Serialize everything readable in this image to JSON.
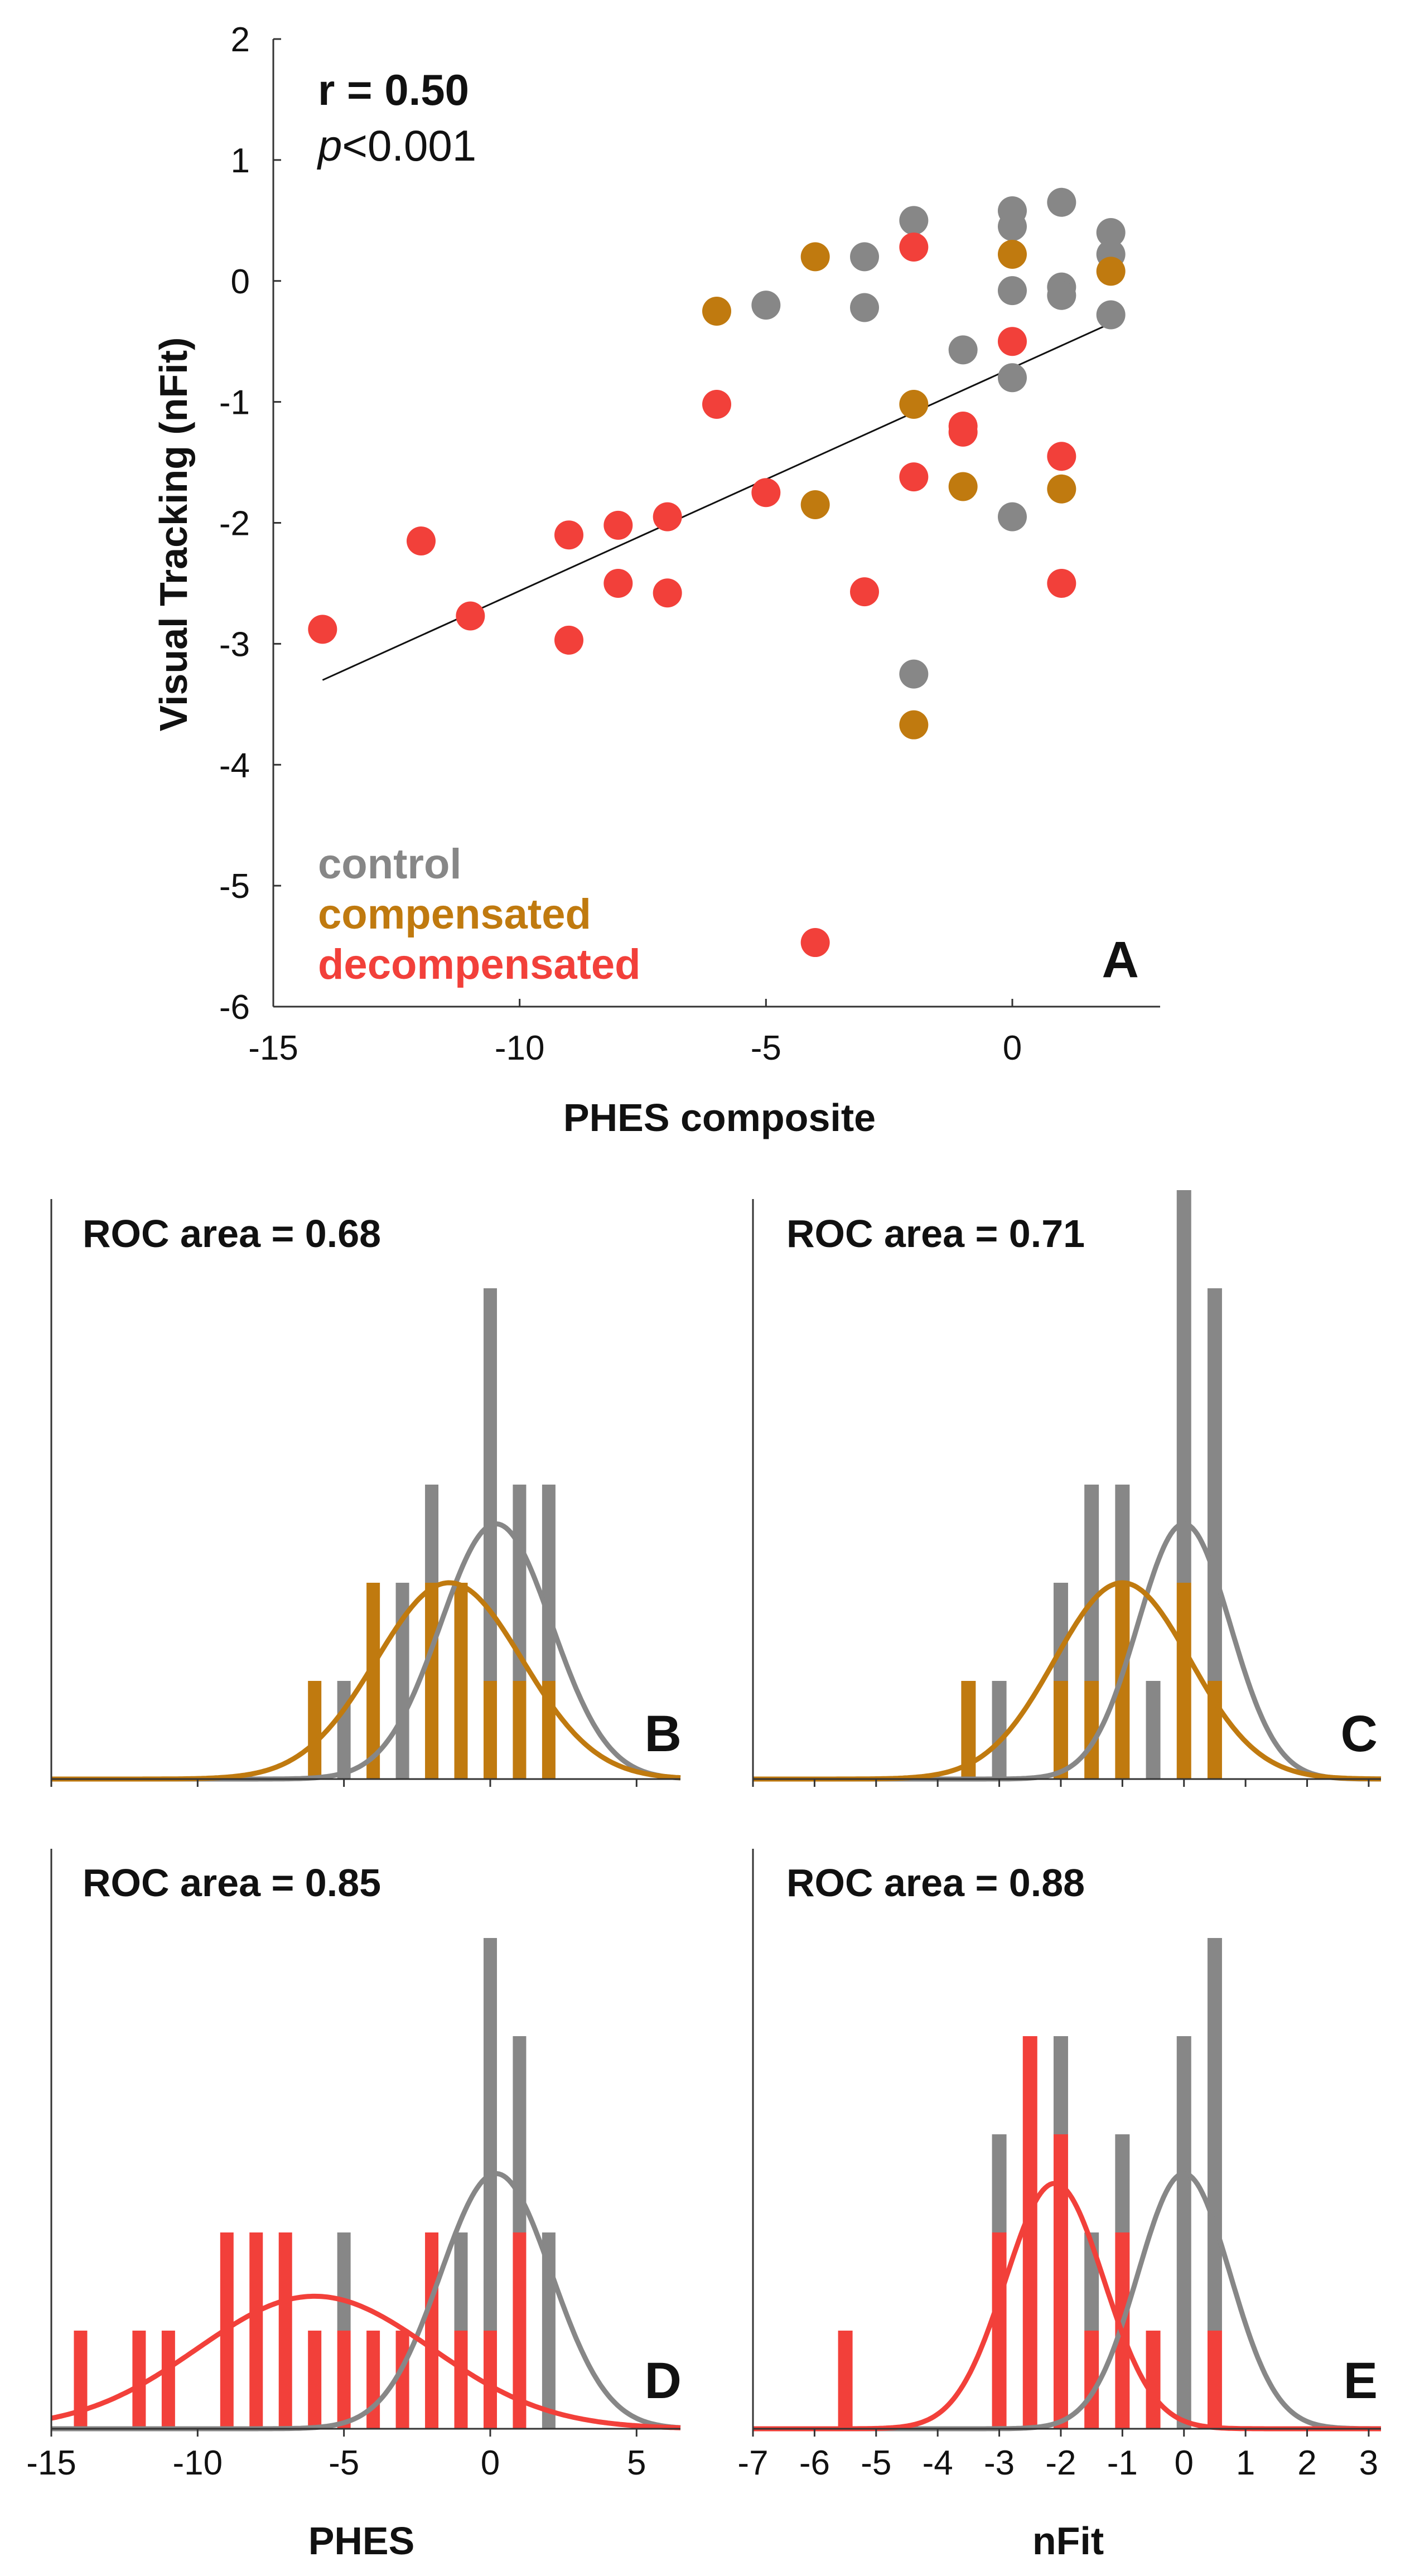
{
  "colors": {
    "control": "#878787",
    "compensated": "#C07A0F",
    "decompensated": "#F2403A",
    "axis": "#333333"
  },
  "chart_data": [
    {
      "panel": "A",
      "type": "scatter",
      "xlabel": "PHES composite",
      "ylabel": "Visual Tracking (nFit)",
      "xlim": [
        -15,
        3
      ],
      "ylim": [
        -6,
        2
      ],
      "xticks": [
        "-15",
        "-10",
        "-5",
        "0"
      ],
      "xtick_values": [
        -15,
        -10,
        -5,
        0
      ],
      "yticks": [
        "2",
        "1",
        "0",
        "-1",
        "-2",
        "-3",
        "-4",
        "-5",
        "-6"
      ],
      "ytick_values": [
        2,
        1,
        0,
        -1,
        -2,
        -3,
        -4,
        -5,
        -6
      ],
      "stats": {
        "r": "r = 0.50",
        "p_italic": "p",
        "p_rest": "<0.001"
      },
      "legend": [
        "control",
        "compensated",
        "decompensated"
      ],
      "fit_line": {
        "x": [
          -14,
          2
        ],
        "y": [
          -3.3,
          -0.35
        ]
      },
      "series": [
        {
          "name": "control",
          "points": [
            [
              -5,
              -0.2
            ],
            [
              -3,
              0.2
            ],
            [
              -3,
              -0.22
            ],
            [
              -2,
              0.5
            ],
            [
              -2,
              -3.25
            ],
            [
              -1,
              -0.57
            ],
            [
              0,
              0.58
            ],
            [
              0,
              0.45
            ],
            [
              0,
              -0.08
            ],
            [
              0,
              -0.8
            ],
            [
              0,
              -1.95
            ],
            [
              1,
              0.65
            ],
            [
              1,
              -0.05
            ],
            [
              1,
              -0.12
            ],
            [
              2,
              0.4
            ],
            [
              2,
              0.22
            ],
            [
              2,
              -0.28
            ]
          ]
        },
        {
          "name": "compensated",
          "points": [
            [
              -6,
              -0.25
            ],
            [
              -4,
              0.2
            ],
            [
              -4,
              -1.85
            ],
            [
              -2,
              -1.02
            ],
            [
              -2,
              -3.67
            ],
            [
              -1,
              -1.7
            ],
            [
              0,
              0.22
            ],
            [
              1,
              -1.72
            ],
            [
              2,
              0.08
            ]
          ]
        },
        {
          "name": "decompensated",
          "points": [
            [
              -14,
              -2.88
            ],
            [
              -12,
              -2.15
            ],
            [
              -11,
              -2.77
            ],
            [
              -9,
              -2.1
            ],
            [
              -9,
              -2.97
            ],
            [
              -8,
              -2.02
            ],
            [
              -8,
              -2.5
            ],
            [
              -7,
              -1.95
            ],
            [
              -7,
              -2.58
            ],
            [
              -6,
              -1.02
            ],
            [
              -5,
              -1.75
            ],
            [
              -4,
              -5.47
            ],
            [
              -3,
              -2.57
            ],
            [
              -2,
              0.28
            ],
            [
              -2,
              -1.62
            ],
            [
              -1,
              -1.2
            ],
            [
              -1,
              -1.25
            ],
            [
              0,
              -0.5
            ],
            [
              1,
              -1.45
            ],
            [
              1,
              -2.5
            ]
          ]
        }
      ]
    },
    {
      "panel": "B",
      "type": "bar",
      "title": "ROC area = 0.68",
      "xlim": [
        -15,
        6.5
      ],
      "compare": "compensated",
      "bins": [
        -6,
        -5,
        -4,
        -3,
        -2,
        -1,
        0,
        1,
        2
      ],
      "control_counts": [
        0,
        1,
        0,
        2,
        1,
        0,
        4,
        2,
        2
      ],
      "patient_counts": [
        1,
        0,
        2,
        0,
        2,
        2,
        1,
        1,
        1
      ],
      "fits": [
        {
          "name": "control",
          "mu": 0.2,
          "sigma": 1.9,
          "peak_counts": 2.6
        },
        {
          "name": "compensated",
          "mu": -1.4,
          "sigma": 2.5,
          "peak_counts": 2.0
        }
      ]
    },
    {
      "panel": "C",
      "type": "bar",
      "title": "ROC area = 0.71",
      "xlim": [
        -7,
        3.2
      ],
      "compare": "compensated",
      "bins": [
        -3.5,
        -3.0,
        -2.0,
        -1.5,
        -1.0,
        -0.5,
        0.0,
        0.5
      ],
      "control_counts": [
        0,
        1,
        1,
        2,
        1,
        1,
        4,
        4
      ],
      "patient_counts": [
        1,
        0,
        1,
        1,
        2,
        0,
        2,
        1
      ],
      "fits": [
        {
          "name": "control",
          "mu": 0.0,
          "sigma": 0.75,
          "peak_counts": 2.6
        },
        {
          "name": "compensated",
          "mu": -1.0,
          "sigma": 1.1,
          "peak_counts": 2.0
        }
      ]
    },
    {
      "panel": "D",
      "type": "bar",
      "title": "ROC area = 0.85",
      "xlabel": "PHES",
      "xlim": [
        -15,
        6.5
      ],
      "xticks": [
        "-15",
        "-10",
        "-5",
        "0",
        "5"
      ],
      "xtick_values": [
        -15,
        -10,
        -5,
        0,
        5
      ],
      "compare": "decompensated",
      "bins": [
        -14,
        -12,
        -11,
        -9,
        -8,
        -7,
        -6,
        -5,
        -4,
        -3,
        -2,
        -1,
        0,
        1,
        2
      ],
      "control_counts": [
        0,
        0,
        0,
        0,
        0,
        0,
        0,
        1,
        0,
        0,
        0,
        1,
        4,
        2,
        2
      ],
      "patient_counts": [
        1,
        1,
        1,
        2,
        2,
        2,
        1,
        1,
        1,
        1,
        2,
        1,
        1,
        2,
        0
      ],
      "fits": [
        {
          "name": "control",
          "mu": 0.2,
          "sigma": 1.9,
          "peak_counts": 2.6
        },
        {
          "name": "decompensated",
          "mu": -6.0,
          "sigma": 4.0,
          "peak_counts": 1.35
        }
      ]
    },
    {
      "panel": "E",
      "type": "bar",
      "title": "ROC area = 0.88",
      "xlabel": "nFit",
      "xlim": [
        -7,
        3.2
      ],
      "xticks": [
        "-7",
        "-6",
        "-5",
        "-4",
        "-3",
        "-2",
        "-1",
        "0",
        "1",
        "2",
        "3"
      ],
      "xtick_values": [
        -7,
        -6,
        -5,
        -4,
        -3,
        -2,
        -1,
        0,
        1,
        2,
        3
      ],
      "compare": "decompensated",
      "bins": [
        -5.5,
        -3.0,
        -2.5,
        -2.0,
        -1.5,
        -1.0,
        -0.5,
        0.0,
        0.5
      ],
      "control_counts": [
        0,
        1,
        0,
        1,
        1,
        1,
        0,
        4,
        4
      ],
      "patient_counts": [
        1,
        2,
        4,
        3,
        1,
        2,
        1,
        0,
        1
      ],
      "fits": [
        {
          "name": "control",
          "mu": 0.0,
          "sigma": 0.75,
          "peak_counts": 2.6
        },
        {
          "name": "decompensated",
          "mu": -2.1,
          "sigma": 0.8,
          "peak_counts": 2.5
        }
      ]
    }
  ]
}
